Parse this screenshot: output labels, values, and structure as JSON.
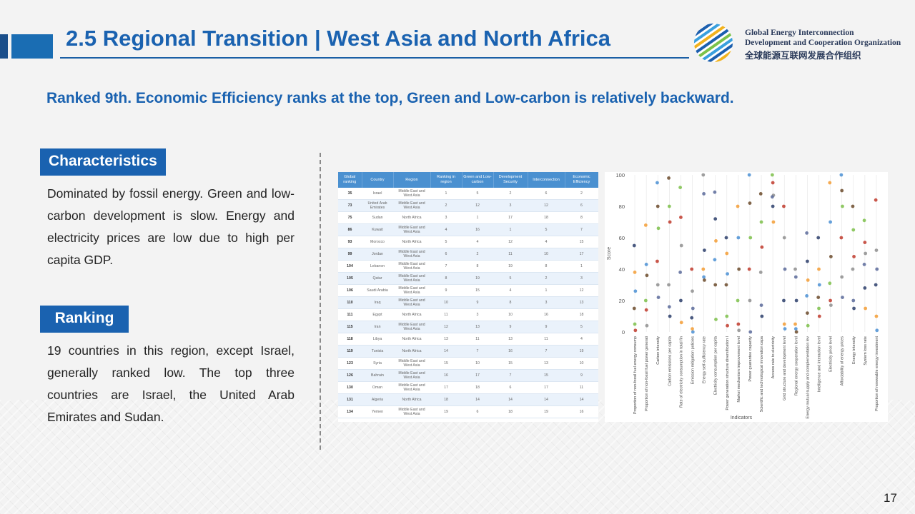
{
  "header": {
    "title": "2.5 Regional Transition | West Asia and North Africa",
    "org_en_line1": "Global Energy Interconnection",
    "org_en_line2": "Development and Cooperation Organization",
    "org_cn": "全球能源互联网发展合作组织"
  },
  "subtitle": "Ranked 9th.  Economic Efficiency ranks at the top, Green and Low-carbon is relatively backward.",
  "characteristics": {
    "label": "Characteristics",
    "text": "Dominated by fossil energy. Green and low-carbon development is slow. Energy and electricity prices are low due to high per capita GDP."
  },
  "ranking": {
    "label": "Ranking",
    "text": "19 countries in this region, except Israel, generally ranked low. The top three countries are Israel, the United Arab Emirates and Sudan."
  },
  "table": {
    "columns": [
      "Global ranking",
      "Country",
      "Region",
      "Ranking in region",
      "Green and Low-carbon",
      "Development Security",
      "Interconnection",
      "Economic Efficiency"
    ],
    "rows": [
      [
        "35",
        "Israel",
        "Middle East and West Asia",
        "1",
        "5",
        "2",
        "6",
        "2"
      ],
      [
        "73",
        "United Arab Emirates",
        "Middle East and West Asia",
        "2",
        "12",
        "3",
        "12",
        "6"
      ],
      [
        "75",
        "Sudan",
        "North Africa",
        "3",
        "1",
        "17",
        "18",
        "8"
      ],
      [
        "86",
        "Kuwait",
        "Middle East and West Asia",
        "4",
        "16",
        "1",
        "5",
        "7"
      ],
      [
        "93",
        "Morocco",
        "North Africa",
        "5",
        "4",
        "12",
        "4",
        "15"
      ],
      [
        "99",
        "Jordan",
        "Middle East and West Asia",
        "6",
        "2",
        "11",
        "10",
        "17"
      ],
      [
        "104",
        "Lebanon",
        "Middle East and West Asia",
        "7",
        "8",
        "19",
        "8",
        "1"
      ],
      [
        "105",
        "Qatar",
        "Middle East and West Asia",
        "8",
        "19",
        "5",
        "2",
        "3"
      ],
      [
        "106",
        "Saudi Arabia",
        "Middle East and West Asia",
        "9",
        "15",
        "4",
        "1",
        "12"
      ],
      [
        "110",
        "Iraq",
        "Middle East and West Asia",
        "10",
        "9",
        "8",
        "3",
        "13"
      ],
      [
        "111",
        "Egypt",
        "North Africa",
        "11",
        "3",
        "10",
        "16",
        "18"
      ],
      [
        "115",
        "Iran",
        "Middle East and West Asia",
        "12",
        "13",
        "9",
        "9",
        "5"
      ],
      [
        "118",
        "Libya",
        "North Africa",
        "13",
        "11",
        "13",
        "11",
        "4"
      ],
      [
        "119",
        "Tunisia",
        "North Africa",
        "14",
        "7",
        "16",
        "7",
        "19"
      ],
      [
        "123",
        "Syria",
        "Middle East and West Asia",
        "15",
        "10",
        "15",
        "13",
        "10"
      ],
      [
        "126",
        "Bahrain",
        "Middle East and West Asia",
        "16",
        "17",
        "7",
        "15",
        "9"
      ],
      [
        "130",
        "Oman",
        "Middle East and West Asia",
        "17",
        "18",
        "6",
        "17",
        "11"
      ],
      [
        "131",
        "Algeria",
        "North Africa",
        "18",
        "14",
        "14",
        "14",
        "14"
      ],
      [
        "134",
        "Yemen",
        "Middle East and West Asia",
        "19",
        "6",
        "18",
        "19",
        "16"
      ]
    ]
  },
  "chart_data": {
    "type": "scatter",
    "ylabel": "Score",
    "xlabel": "Indicators",
    "ylim": [
      0,
      100
    ],
    "yticks": [
      0,
      20,
      40,
      60,
      80,
      100
    ],
    "categories": [
      "Proportion of non-fossil fuel energy consumption",
      "Proportion of non-fossil fuel power generation",
      "Carbon intensity",
      "Carbon emissions per capita",
      "Rate of electricity consumption in total final energy consumption",
      "Emission mitigation policies",
      "Energy self-sufficiency rate",
      "Electricity consumption per capita",
      "Power generation structure diversification level",
      "Market mechanism improvement level",
      "Power guarantee capacity",
      "Scientific and technological innovation capacity",
      "Access rate to electricity",
      "Grid structure and development level",
      "Regional energy cooperation level",
      "Energy mutual supply and complementation level",
      "Intelligence and interaction level",
      "Electricity price level",
      "Affordability of energy prices",
      "Energy intensity",
      "System loss rate",
      "Proportion of renewable energy investment"
    ],
    "series": [
      {
        "values": [
          55,
          68,
          95,
          98,
          92,
          40,
          100,
          89,
          60,
          80,
          100,
          88,
          100,
          80,
          40,
          63,
          60,
          95,
          100,
          80,
          71,
          84
        ]
      },
      {
        "values": [
          38,
          43,
          80,
          80,
          73,
          26,
          88,
          72,
          50,
          60,
          82,
          70,
          95,
          60,
          35,
          45,
          40,
          70,
          90,
          65,
          57,
          52
        ]
      },
      {
        "values": [
          26,
          36,
          66,
          70,
          55,
          15,
          52,
          58,
          37,
          40,
          60,
          54,
          87,
          40,
          20,
          33,
          30,
          48,
          80,
          48,
          50,
          40
        ]
      },
      {
        "values": [
          15,
          20,
          45,
          30,
          38,
          9,
          40,
          46,
          30,
          20,
          40,
          38,
          86,
          20,
          5,
          23,
          22,
          31,
          60,
          40,
          43,
          30
        ]
      },
      {
        "values": [
          5,
          14,
          30,
          16,
          20,
          2,
          35,
          30,
          10,
          5,
          20,
          17,
          80,
          5,
          2,
          12,
          15,
          20,
          35,
          20,
          28,
          10
        ]
      },
      {
        "values": [
          1,
          4,
          22,
          10,
          6,
          0,
          33,
          8,
          4,
          1,
          0,
          10,
          70,
          2,
          0,
          4,
          10,
          17,
          22,
          15,
          15,
          1
        ]
      }
    ]
  },
  "page_number": "17"
}
